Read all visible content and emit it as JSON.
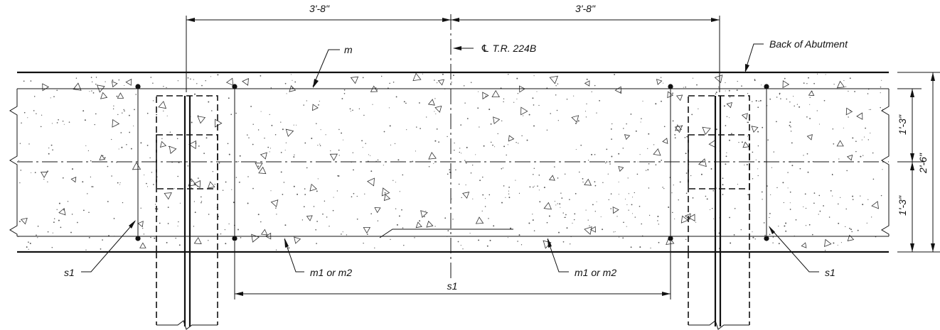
{
  "dimensions": {
    "left_spacing": "3'-8\"",
    "right_spacing": "3'-8\"",
    "top_half_depth": "1'-3\"",
    "bottom_half_depth": "1'-3\"",
    "total_depth": "2'-6\"",
    "bottom_bar_spacing": "s1"
  },
  "callouts": {
    "top_bar": "m",
    "centerline": "℄ T.R. 224B",
    "back_of_abutment": "Back of Abutment",
    "left_stirrup": "s1",
    "right_stirrup": "s1",
    "left_bottom_bar": "m1 or m2",
    "right_bottom_bar": "m1 or m2"
  }
}
